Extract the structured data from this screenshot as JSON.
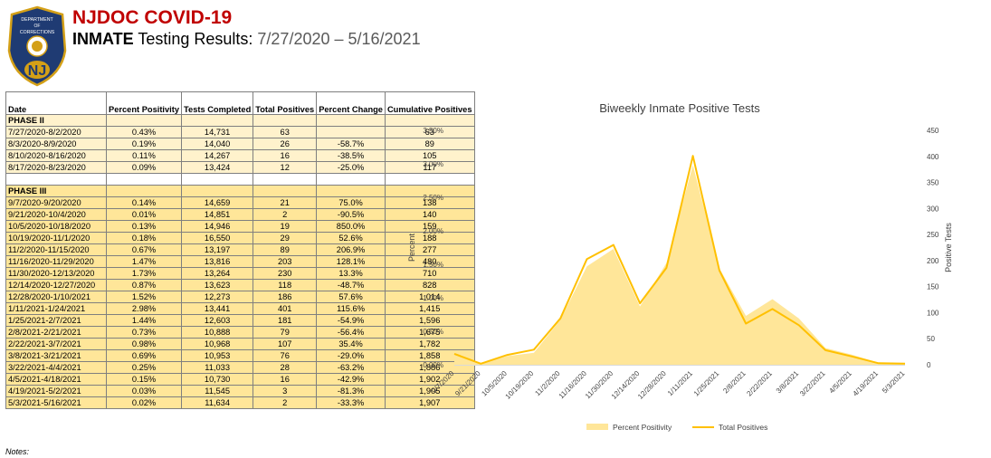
{
  "header": {
    "title": "NJDOC COVID-19",
    "subtitle_bold": "INMATE",
    "subtitle_regular": " Testing Results: ",
    "subtitle_range": "7/27/2020 – 5/16/2021"
  },
  "logo": {
    "text_top": "DEPARTMENT",
    "text_mid": "OF",
    "text_bot": "CORRECTIONS",
    "monogram": "NJ",
    "colors": {
      "shield": "#1f3b73",
      "gold": "#d4a017"
    }
  },
  "table": {
    "headers": [
      "Date",
      "Percent Positivity",
      "Tests Completed",
      "Total Positives",
      "Percent Change",
      "Cumulative Positives"
    ],
    "phase2_label": "PHASE II",
    "phase3_label": "PHASE III",
    "phase2_rows": [
      [
        "7/27/2020-8/2/2020",
        "0.43%",
        "14,731",
        "63",
        "",
        "63"
      ],
      [
        "8/3/2020-8/9/2020",
        "0.19%",
        "14,040",
        "26",
        "-58.7%",
        "89"
      ],
      [
        "8/10/2020-8/16/2020",
        "0.11%",
        "14,267",
        "16",
        "-38.5%",
        "105"
      ],
      [
        "8/17/2020-8/23/2020",
        "0.09%",
        "13,424",
        "12",
        "-25.0%",
        "117"
      ]
    ],
    "phase3_rows": [
      [
        "9/7/2020-9/20/2020",
        "0.14%",
        "14,659",
        "21",
        "75.0%",
        "138"
      ],
      [
        "9/21/2020-10/4/2020",
        "0.01%",
        "14,851",
        "2",
        "-90.5%",
        "140"
      ],
      [
        "10/5/2020-10/18/2020",
        "0.13%",
        "14,946",
        "19",
        "850.0%",
        "159"
      ],
      [
        "10/19/2020-11/1/2020",
        "0.18%",
        "16,550",
        "29",
        "52.6%",
        "188"
      ],
      [
        "11/2/2020-11/15/2020",
        "0.67%",
        "13,197",
        "89",
        "206.9%",
        "277"
      ],
      [
        "11/16/2020-11/29/2020",
        "1.47%",
        "13,816",
        "203",
        "128.1%",
        "480"
      ],
      [
        "11/30/2020-12/13/2020",
        "1.73%",
        "13,264",
        "230",
        "13.3%",
        "710"
      ],
      [
        "12/14/2020-12/27/2020",
        "0.87%",
        "13,623",
        "118",
        "-48.7%",
        "828"
      ],
      [
        "12/28/2020-1/10/2021",
        "1.52%",
        "12,273",
        "186",
        "57.6%",
        "1,014"
      ],
      [
        "1/11/2021-1/24/2021",
        "2.98%",
        "13,441",
        "401",
        "115.6%",
        "1,415"
      ],
      [
        "1/25/2021-2/7/2021",
        "1.44%",
        "12,603",
        "181",
        "-54.9%",
        "1,596"
      ],
      [
        "2/8/2021-2/21/2021",
        "0.73%",
        "10,888",
        "79",
        "-56.4%",
        "1,675"
      ],
      [
        "2/22/2021-3/7/2021",
        "0.98%",
        "10,968",
        "107",
        "35.4%",
        "1,782"
      ],
      [
        "3/8/2021-3/21/2021",
        "0.69%",
        "10,953",
        "76",
        "-29.0%",
        "1,858"
      ],
      [
        "3/22/2021-4/4/2021",
        "0.25%",
        "11,033",
        "28",
        "-63.2%",
        "1,886"
      ],
      [
        "4/5/2021-4/18/2021",
        "0.15%",
        "10,730",
        "16",
        "-42.9%",
        "1,902"
      ],
      [
        "4/19/2021-5/2/2021",
        "0.03%",
        "11,545",
        "3",
        "-81.3%",
        "1,905"
      ],
      [
        "5/3/2021-5/16/2021",
        "0.02%",
        "11,634",
        "2",
        "-33.3%",
        "1,907"
      ]
    ]
  },
  "notes": "Notes:",
  "chart_data": {
    "type": "area",
    "title": "Biweekly Inmate Positive Tests",
    "ylabel": "Percent",
    "y2label": "Positive Tests",
    "categories": [
      "9/7/2020",
      "9/21/2020",
      "10/5/2020",
      "10/19/2020",
      "11/2/2020",
      "11/16/2020",
      "11/30/2020",
      "12/14/2020",
      "12/28/2020",
      "1/11/2021",
      "1/25/2021",
      "2/8/2021",
      "2/22/2021",
      "3/8/2021",
      "3/22/2021",
      "4/5/2021",
      "4/19/2021",
      "5/3/2021"
    ],
    "y_ticks": [
      "0.00%",
      "0.50%",
      "1.00%",
      "1.50%",
      "2.00%",
      "2.50%",
      "3.00%",
      "3.50%"
    ],
    "y2_ticks": [
      "0",
      "50",
      "100",
      "150",
      "200",
      "250",
      "300",
      "350",
      "400",
      "450"
    ],
    "ylim": [
      0,
      3.5
    ],
    "y2lim": [
      0,
      450
    ],
    "series": [
      {
        "name": "Percent Positivity",
        "axis": "left",
        "kind": "area",
        "color": "#ffe699",
        "values": [
          0.14,
          0.01,
          0.13,
          0.18,
          0.67,
          1.47,
          1.73,
          0.87,
          1.52,
          2.98,
          1.44,
          0.73,
          0.98,
          0.69,
          0.25,
          0.15,
          0.03,
          0.02
        ]
      },
      {
        "name": "Total Positives",
        "axis": "right",
        "kind": "line",
        "color": "#ffc000",
        "values": [
          21,
          2,
          19,
          29,
          89,
          203,
          230,
          118,
          186,
          401,
          181,
          79,
          107,
          76,
          28,
          16,
          3,
          2
        ]
      }
    ],
    "legend_position": "bottom",
    "grid": false
  }
}
